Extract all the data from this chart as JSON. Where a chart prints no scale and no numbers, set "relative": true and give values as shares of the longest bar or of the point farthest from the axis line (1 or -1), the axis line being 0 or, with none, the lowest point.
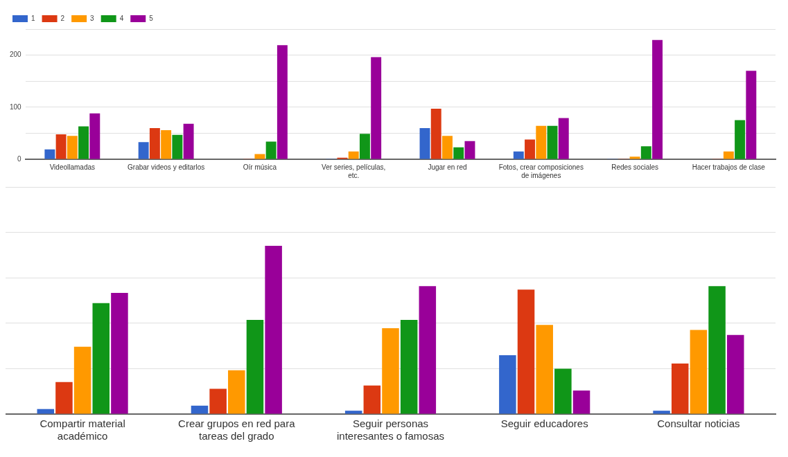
{
  "chart_data": [
    {
      "type": "bar",
      "categories": [
        "Videollamadas",
        "Grabar videos y editarlos",
        "Oír música",
        "Ver series, películas, etc.",
        "Jugar en red",
        "Fotos, crear composiciones de imágenes",
        "Redes sociales",
        "Hacer trabajos de clase"
      ],
      "series": [
        {
          "name": "1",
          "color": "#3366cc",
          "values": [
            19,
            33,
            0,
            1,
            60,
            15,
            1,
            0
          ]
        },
        {
          "name": "2",
          "color": "#dc3912",
          "values": [
            48,
            60,
            1,
            3,
            97,
            38,
            1,
            1
          ]
        },
        {
          "name": "3",
          "color": "#ff9900",
          "values": [
            45,
            56,
            10,
            15,
            45,
            64,
            5,
            15
          ]
        },
        {
          "name": "4",
          "color": "#109618",
          "values": [
            63,
            47,
            34,
            49,
            23,
            64,
            25,
            75
          ]
        },
        {
          "name": "5",
          "color": "#990099",
          "values": [
            88,
            68,
            219,
            196,
            35,
            79,
            229,
            170
          ]
        }
      ],
      "ylim": [
        0,
        250
      ],
      "yticks": [
        0,
        {
          "value": 50,
          "label": null
        },
        100,
        {
          "value": 150,
          "label": null
        },
        200,
        {
          "value": 250,
          "label": null
        }
      ],
      "grid": "y",
      "legend": "top left"
    },
    {
      "type": "bar",
      "relative": true,
      "categories": [
        "Compartir material académico",
        "Crear grupos en red para tareas del grado",
        "Seguir personas interesantes o famosas",
        "Seguir educadores",
        "Consultar noticias"
      ],
      "series": [
        {
          "color": "#3366cc",
          "values": [
            0.03,
            0.05,
            0.02,
            0.35,
            0.02
          ]
        },
        {
          "color": "#dc3912",
          "values": [
            0.19,
            0.15,
            0.17,
            0.74,
            0.3
          ]
        },
        {
          "color": "#ff9900",
          "values": [
            0.4,
            0.26,
            0.51,
            0.53,
            0.5
          ]
        },
        {
          "color": "#109618",
          "values": [
            0.66,
            0.56,
            0.56,
            0.27,
            0.76
          ]
        },
        {
          "color": "#990099",
          "values": [
            0.72,
            1,
            0.76,
            0.14,
            0.47
          ]
        }
      ],
      "grid": "y",
      "legend": false
    }
  ]
}
